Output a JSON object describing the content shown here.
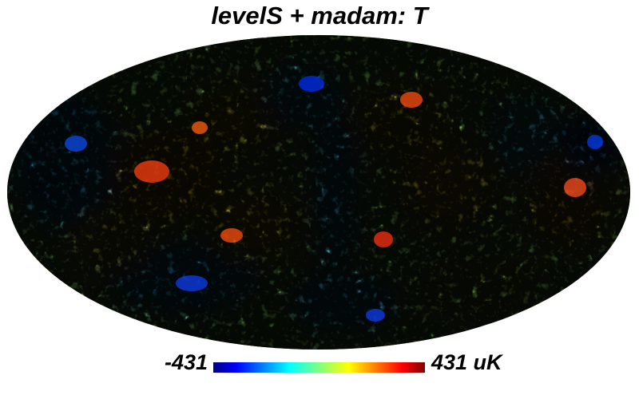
{
  "title": "levelS + madam: T",
  "map": {
    "projection": "mollweide",
    "colormap": "jet",
    "colorbar": {
      "min_label": "-431",
      "max_label": "431 uK",
      "min_value": -431,
      "max_value": 431,
      "unit": "uK",
      "colors": [
        "#00007f",
        "#0000ff",
        "#00ffff",
        "#7fff7f",
        "#ffff00",
        "#ff0000",
        "#7f0000"
      ]
    }
  }
}
